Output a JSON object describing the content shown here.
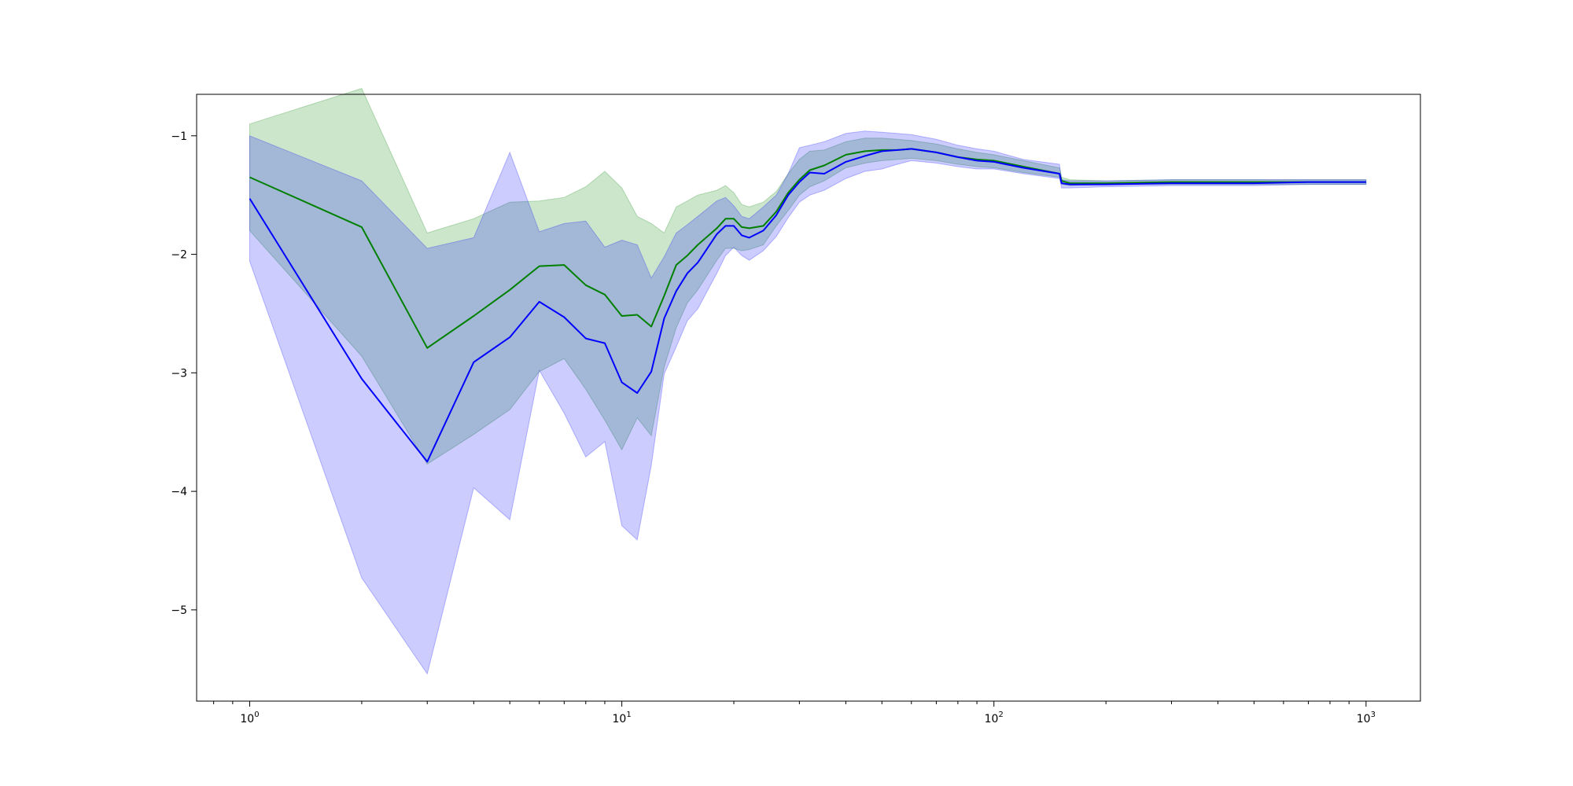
{
  "chart_data": {
    "type": "line",
    "title": "",
    "xlabel": "",
    "ylabel": "",
    "xscale": "log",
    "xlim": [
      0.72,
      1400
    ],
    "ylim": [
      -5.77,
      -0.65
    ],
    "grid": false,
    "legend": "none",
    "x_ticks": [
      {
        "value": 1,
        "base": "10",
        "exp": "0"
      },
      {
        "value": 10,
        "base": "10",
        "exp": "1"
      },
      {
        "value": 100,
        "base": "10",
        "exp": "2"
      },
      {
        "value": 1000,
        "base": "10",
        "exp": "3"
      }
    ],
    "y_ticks": [
      {
        "value": -1,
        "label": "−1"
      },
      {
        "value": -2,
        "label": "−2"
      },
      {
        "value": -3,
        "label": "−3"
      },
      {
        "value": -4,
        "label": "−4"
      },
      {
        "value": -5,
        "label": "−5"
      }
    ],
    "x": [
      1,
      2,
      3,
      4,
      5,
      6,
      7,
      8,
      9,
      10,
      11,
      12,
      13,
      14,
      15,
      16,
      18,
      19,
      20,
      21,
      22,
      24,
      26,
      28,
      30,
      32,
      35,
      40,
      45,
      50,
      55,
      60,
      70,
      80,
      90,
      100,
      120,
      150,
      152,
      160,
      200,
      300,
      500,
      700,
      1000
    ],
    "series": [
      {
        "color": "#008000",
        "band_color": "#008000",
        "band_opacity": 0.2,
        "values": [
          -1.35,
          -1.77,
          -2.79,
          -2.52,
          -2.3,
          -2.1,
          -2.09,
          -2.26,
          -2.34,
          -2.52,
          -2.51,
          -2.61,
          -2.35,
          -2.09,
          -2.01,
          -1.92,
          -1.78,
          -1.7,
          -1.7,
          -1.77,
          -1.78,
          -1.76,
          -1.64,
          -1.48,
          -1.37,
          -1.29,
          -1.25,
          -1.16,
          -1.13,
          -1.12,
          -1.12,
          -1.11,
          -1.14,
          -1.18,
          -1.2,
          -1.21,
          -1.26,
          -1.32,
          -1.38,
          -1.4,
          -1.4,
          -1.39,
          -1.39,
          -1.39,
          -1.39
        ],
        "lower": [
          -1.8,
          -2.86,
          -3.77,
          -3.52,
          -3.31,
          -2.99,
          -2.88,
          -3.14,
          -3.4,
          -3.65,
          -3.38,
          -3.53,
          -2.95,
          -2.62,
          -2.41,
          -2.3,
          -2.05,
          -1.95,
          -1.95,
          -1.97,
          -1.96,
          -1.92,
          -1.76,
          -1.63,
          -1.5,
          -1.43,
          -1.38,
          -1.27,
          -1.23,
          -1.21,
          -1.2,
          -1.19,
          -1.21,
          -1.24,
          -1.26,
          -1.27,
          -1.31,
          -1.35,
          -1.41,
          -1.42,
          -1.41,
          -1.41,
          -1.41,
          -1.41,
          -1.41
        ],
        "upper": [
          -0.9,
          -0.6,
          -1.82,
          -1.7,
          -1.56,
          -1.55,
          -1.52,
          -1.43,
          -1.3,
          -1.44,
          -1.68,
          -1.74,
          -1.82,
          -1.6,
          -1.55,
          -1.5,
          -1.46,
          -1.42,
          -1.48,
          -1.58,
          -1.6,
          -1.56,
          -1.47,
          -1.32,
          -1.2,
          -1.13,
          -1.12,
          -1.05,
          -1.02,
          -1.02,
          -1.03,
          -1.04,
          -1.07,
          -1.11,
          -1.14,
          -1.16,
          -1.21,
          -1.27,
          -1.35,
          -1.37,
          -1.38,
          -1.37,
          -1.37,
          -1.37,
          -1.37
        ]
      },
      {
        "color": "#0000ff",
        "band_color": "#0000ff",
        "band_opacity": 0.2,
        "values": [
          -1.53,
          -3.05,
          -3.75,
          -2.91,
          -2.7,
          -2.4,
          -2.53,
          -2.71,
          -2.75,
          -3.08,
          -3.17,
          -2.99,
          -2.54,
          -2.31,
          -2.16,
          -2.07,
          -1.83,
          -1.76,
          -1.76,
          -1.84,
          -1.86,
          -1.8,
          -1.67,
          -1.5,
          -1.39,
          -1.31,
          -1.32,
          -1.22,
          -1.17,
          -1.13,
          -1.12,
          -1.11,
          -1.14,
          -1.18,
          -1.21,
          -1.22,
          -1.27,
          -1.32,
          -1.4,
          -1.41,
          -1.41,
          -1.4,
          -1.4,
          -1.39,
          -1.39
        ],
        "lower": [
          -2.06,
          -4.73,
          -5.54,
          -3.97,
          -4.24,
          -2.98,
          -3.34,
          -3.71,
          -3.58,
          -4.29,
          -4.41,
          -3.78,
          -3.01,
          -2.78,
          -2.56,
          -2.46,
          -2.16,
          -2.01,
          -1.94,
          -2.01,
          -2.05,
          -1.97,
          -1.85,
          -1.69,
          -1.56,
          -1.5,
          -1.46,
          -1.36,
          -1.3,
          -1.28,
          -1.24,
          -1.21,
          -1.23,
          -1.26,
          -1.28,
          -1.28,
          -1.32,
          -1.36,
          -1.44,
          -1.44,
          -1.43,
          -1.42,
          -1.42,
          -1.41,
          -1.41
        ],
        "upper": [
          -1.0,
          -1.38,
          -1.95,
          -1.86,
          -1.14,
          -1.81,
          -1.74,
          -1.72,
          -1.94,
          -1.88,
          -1.92,
          -2.2,
          -2.02,
          -1.82,
          -1.75,
          -1.68,
          -1.55,
          -1.52,
          -1.59,
          -1.68,
          -1.7,
          -1.6,
          -1.5,
          -1.32,
          -1.1,
          -1.08,
          -1.05,
          -0.98,
          -0.96,
          -0.97,
          -0.98,
          -0.99,
          -1.03,
          -1.08,
          -1.11,
          -1.13,
          -1.2,
          -1.24,
          -1.37,
          -1.38,
          -1.38,
          -1.37,
          -1.37,
          -1.37,
          -1.37
        ]
      }
    ]
  }
}
